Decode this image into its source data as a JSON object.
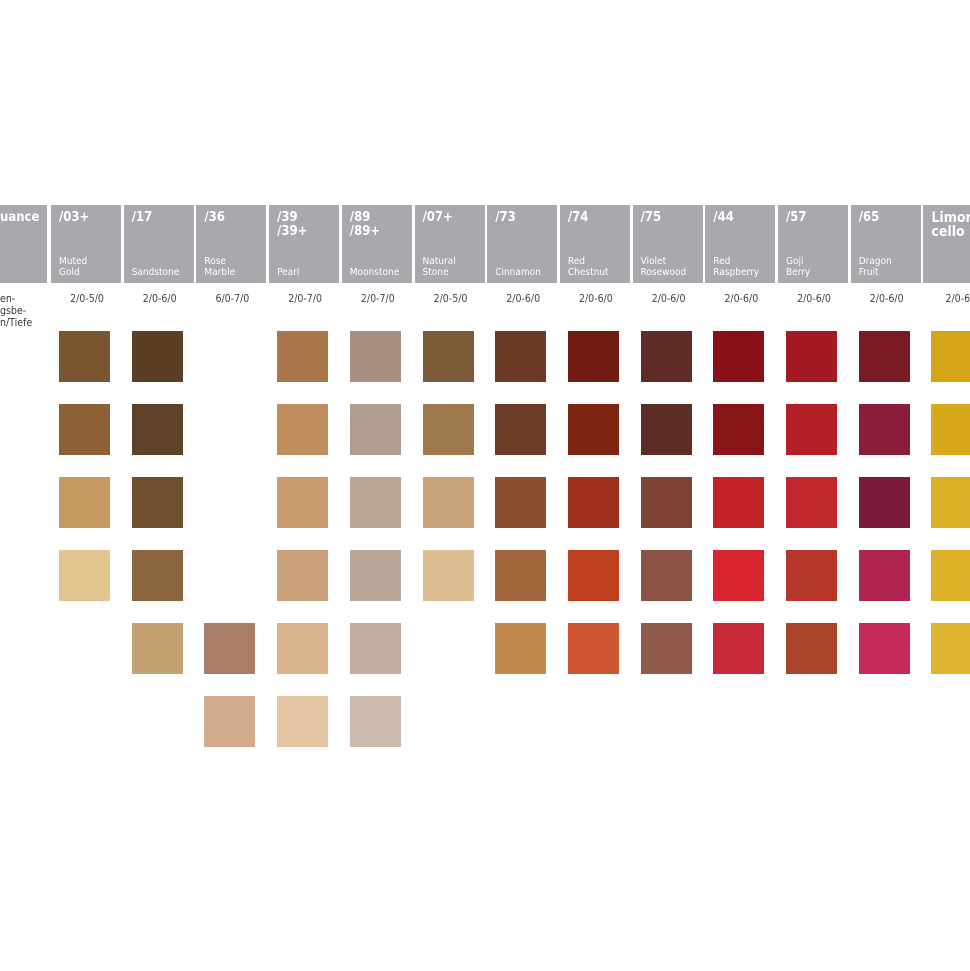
{
  "left_header": "uance",
  "left_label": [
    "en-",
    "gsbe-",
    "n/Tiefe"
  ],
  "columns": [
    {
      "code": [
        "/03+"
      ],
      "name": [
        "Muted",
        "Gold"
      ],
      "range": "2/0-5/0",
      "swatches": [
        "#7a5530",
        "#8c6136",
        "#c49a62",
        "#e3c48f",
        null,
        null
      ]
    },
    {
      "code": [
        "/17"
      ],
      "name": [
        "Sandstone"
      ],
      "range": "2/0-6/0",
      "swatches": [
        "#5b3e24",
        "#5e4129",
        "#6f4f2e",
        "#8a6640",
        "#c4a272",
        null
      ]
    },
    {
      "code": [
        "/36"
      ],
      "name": [
        "Rose",
        "Marble"
      ],
      "range": "6/0-7/0",
      "swatches": [
        null,
        null,
        null,
        null,
        "#a97e68",
        "#d2ab8f"
      ]
    },
    {
      "code": [
        "/39",
        "/39+"
      ],
      "name": [
        "Pearl"
      ],
      "range": "2/0-7/0",
      "swatches": [
        "#a9774a",
        "#c08d5c",
        "#c99b6e",
        "#c9a07a",
        "#d9b48e",
        "#e5c4a3"
      ]
    },
    {
      "code": [
        "/89",
        "/89+"
      ],
      "name": [
        "Moonstone"
      ],
      "range": "2/0-7/0",
      "swatches": [
        "#a88e80",
        "#b19d8f",
        "#baa697",
        "#b9a89a",
        "#c2ada0",
        "#cbbaad"
      ]
    },
    {
      "code": [
        "/07+"
      ],
      "name": [
        "Natural",
        "Stone"
      ],
      "range": "2/0-5/0",
      "swatches": [
        "#7d5a38",
        "#a07a4f",
        "#c9a47a",
        "#ddbd91",
        null,
        null
      ]
    },
    {
      "code": [
        "/73"
      ],
      "name": [
        "Cinnamon"
      ],
      "range": "2/0-6/0",
      "swatches": [
        "#6b3a24",
        "#6c3b25",
        "#8c4e2f",
        "#a1653a",
        "#c08a4c",
        null
      ]
    },
    {
      "code": [
        "/74"
      ],
      "name": [
        "Red",
        "Chestnut"
      ],
      "range": "2/0-6/0",
      "swatches": [
        "#6e1d10",
        "#7e2412",
        "#9e2f1a",
        "#bf4020",
        "#cf5430",
        null
      ]
    },
    {
      "code": [
        "/75"
      ],
      "name": [
        "Violet",
        "Rosewood"
      ],
      "range": "2/0-6/0",
      "swatches": [
        "#5e2b25",
        "#5c2d24",
        "#7e4436",
        "#8b5345",
        "#8f5a4c",
        null
      ]
    },
    {
      "code": [
        "/44"
      ],
      "name": [
        "Red",
        "Raspberry"
      ],
      "range": "2/0-6/0",
      "swatches": [
        "#8a1018",
        "#8a1519",
        "#c22127",
        "#d82530",
        "#c8283a",
        null
      ]
    },
    {
      "code": [
        "/57"
      ],
      "name": [
        "Goji",
        "Berry"
      ],
      "range": "2/0-6/0",
      "swatches": [
        "#a31a22",
        "#b41f28",
        "#c02a2e",
        "#b5372a",
        "#a8452a",
        null
      ]
    },
    {
      "code": [
        "/65"
      ],
      "name": [
        "Dragon",
        "Fruit"
      ],
      "range": "2/0-6/0",
      "swatches": [
        "#7a1a22",
        "#8a1e3a",
        "#7a1a3a",
        "#b02550",
        "#c52a5a",
        null
      ]
    },
    {
      "code": [
        "Limon-",
        "cello"
      ],
      "name": [],
      "range": "2/0-6/",
      "swatches": [
        "#d4a516",
        "#d8a91a",
        "#d9b028",
        "#ddb22a",
        "#e0b42f",
        null
      ]
    }
  ]
}
